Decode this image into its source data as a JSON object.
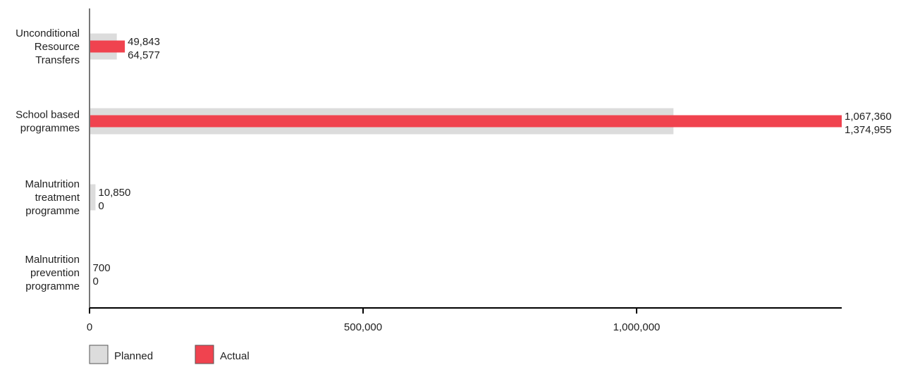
{
  "chart_data": {
    "type": "bar",
    "orientation": "horizontal",
    "categories": [
      [
        "Unconditional",
        "Resource",
        "Transfers"
      ],
      [
        "School based",
        "programmes"
      ],
      [
        "Malnutrition",
        "treatment",
        "programme"
      ],
      [
        "Malnutrition",
        "prevention",
        "programme"
      ]
    ],
    "series": [
      {
        "name": "Planned",
        "color": "#dcdcdc",
        "values": [
          49843,
          1067360,
          10850,
          700
        ]
      },
      {
        "name": "Actual",
        "color": "#f0434f",
        "values": [
          64577,
          1374955,
          0,
          0
        ]
      }
    ],
    "value_labels": {
      "planned": [
        "49,843",
        "1,067,360",
        "10,850",
        "700"
      ],
      "actual": [
        "64,577",
        "1,374,955",
        "0",
        "0"
      ]
    },
    "xlim": [
      0,
      1374955
    ],
    "xticks": [
      0,
      500000,
      1000000
    ],
    "xtick_labels": [
      "0",
      "500,000",
      "1,000,000"
    ],
    "grid": false,
    "legend_position": "bottom-left"
  }
}
